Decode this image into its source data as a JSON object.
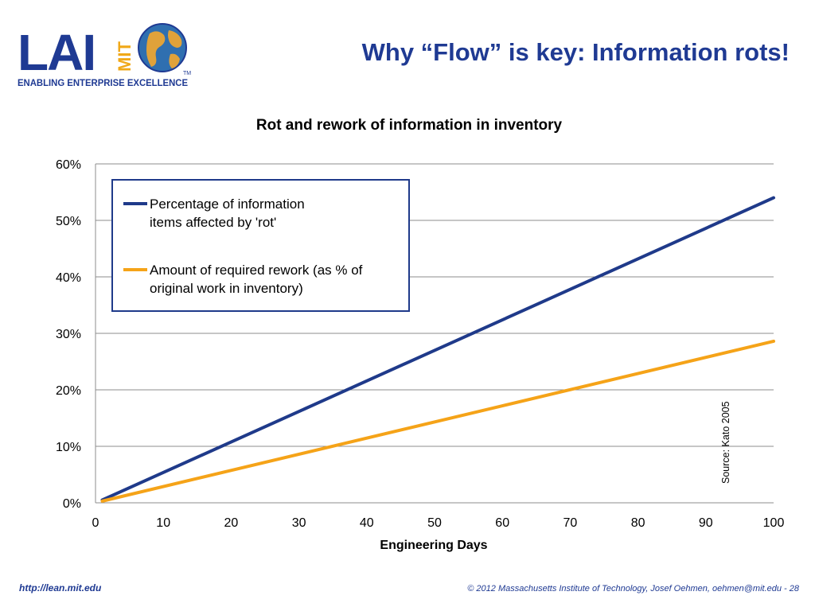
{
  "header": {
    "logo": {
      "letters_main": "LAI",
      "letters_vertical": "MIT",
      "trademark": "TM",
      "tagline": "ENABLING ENTERPRISE EXCELLENCE",
      "colors": {
        "navy": "#1f3a93",
        "gold": "#f0a818",
        "globe_ocean": "#2f6fb0",
        "globe_land": "#e0a23a"
      }
    },
    "title": "Why “Flow” is key: Information rots!"
  },
  "chart_data": {
    "type": "line",
    "title": "Rot and rework of information in inventory",
    "xlabel": "Engineering Days",
    "ylabel": "",
    "xlim": [
      0,
      100
    ],
    "ylim": [
      0,
      0.6
    ],
    "x_ticks": [
      0,
      10,
      20,
      30,
      40,
      50,
      60,
      70,
      80,
      90,
      100
    ],
    "x_tick_labels": [
      "0",
      "10",
      "20",
      "30",
      "40",
      "50",
      "60",
      "70",
      "80",
      "90",
      "100"
    ],
    "y_ticks": [
      0,
      0.1,
      0.2,
      0.3,
      0.4,
      0.5,
      0.6
    ],
    "y_tick_labels": [
      "0%",
      "10%",
      "20%",
      "30%",
      "40%",
      "50%",
      "60%"
    ],
    "grid": "horizontal",
    "legend_position": "top-left",
    "annotation": "Source: Kato 2005",
    "series": [
      {
        "name": "Percentage of information items affected by 'rot'",
        "color": "#1f3a8a",
        "x": [
          1,
          100
        ],
        "y": [
          0.005,
          0.54
        ]
      },
      {
        "name": "Amount of required rework (as % of original work in inventory)",
        "color": "#f5a318",
        "x": [
          1,
          100
        ],
        "y": [
          0.003,
          0.286
        ]
      }
    ]
  },
  "footer": {
    "url": "http://lean.mit.edu",
    "copyright": "© 2012 Massachusetts Institute of Technology, Josef Oehmen, oehmen@mit.edu - 28"
  }
}
